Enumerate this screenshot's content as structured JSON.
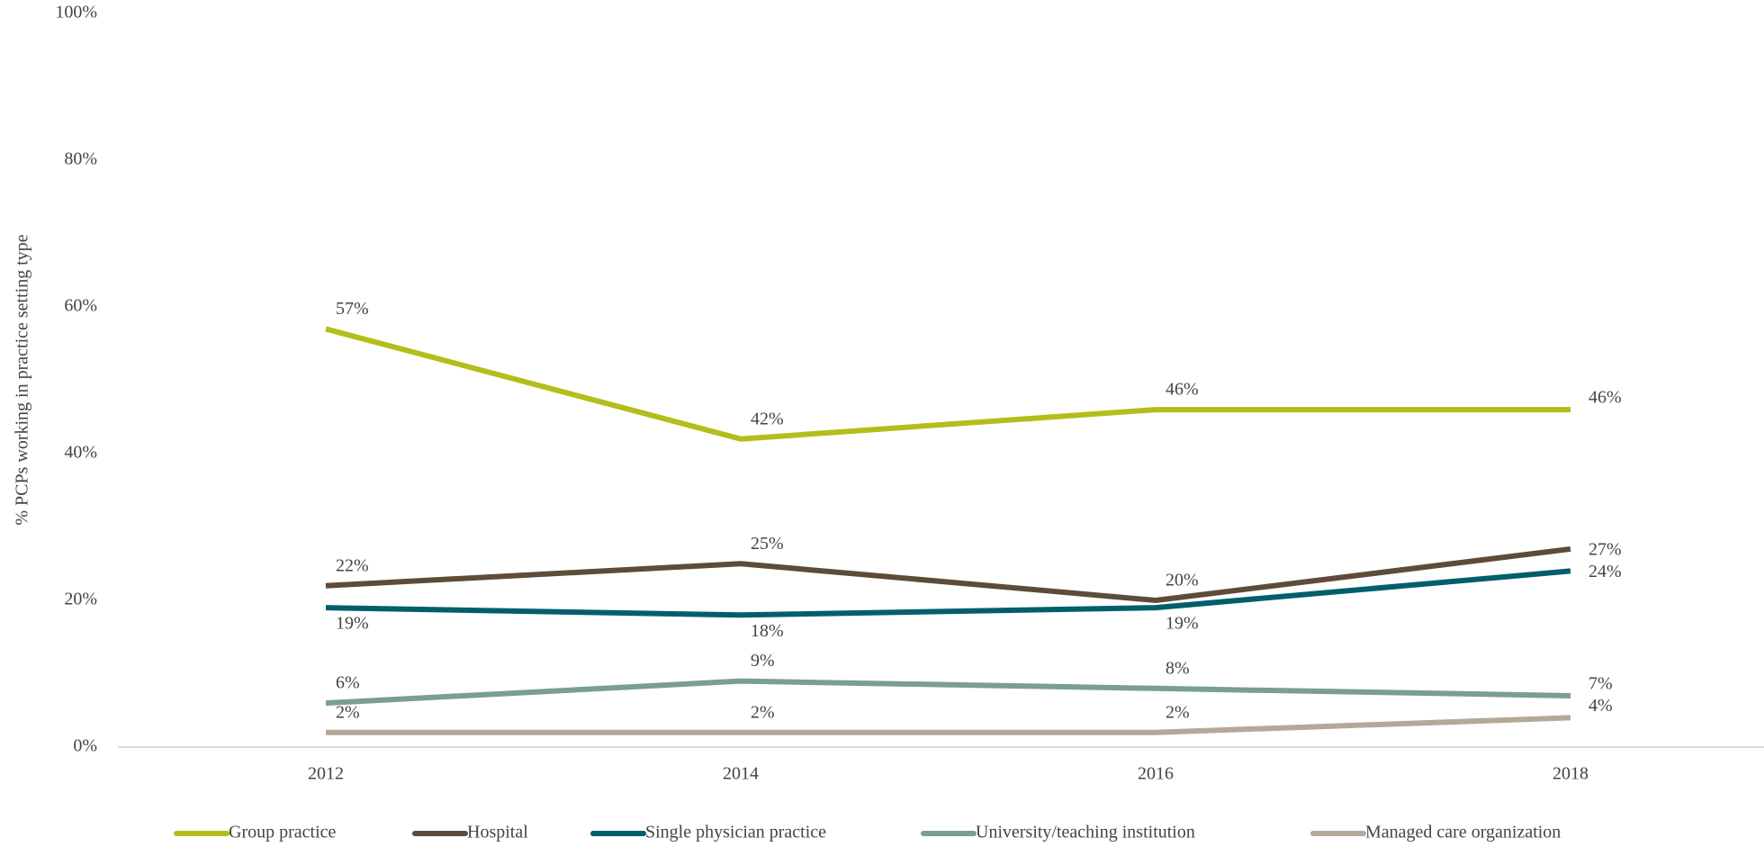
{
  "chart_data": {
    "type": "line",
    "y_label": "% PCPs working in practice setting type",
    "categories": [
      "2012",
      "2014",
      "2016",
      "2018"
    ],
    "ylim": [
      0,
      100
    ],
    "yticks": [
      {
        "value": 0,
        "label": "0%"
      },
      {
        "value": 20,
        "label": "20%"
      },
      {
        "value": 40,
        "label": "40%"
      },
      {
        "value": 60,
        "label": "60%"
      },
      {
        "value": 80,
        "label": "80%"
      },
      {
        "value": 100,
        "label": "100%"
      }
    ],
    "grid": false,
    "legend": "bottom",
    "series": [
      {
        "name": "Group practice",
        "color": "#b5bd1a",
        "values": [
          57,
          42,
          46,
          46
        ],
        "value_labels": [
          "57%",
          "42%",
          "46%",
          "46%"
        ]
      },
      {
        "name": "Hospital",
        "color": "#5e4b3a",
        "values": [
          22,
          25,
          20,
          27
        ],
        "value_labels": [
          "22%",
          "25%",
          "20%",
          "27%"
        ]
      },
      {
        "name": "Single physician practice",
        "color": "#005f6b",
        "values": [
          19,
          18,
          19,
          24
        ],
        "value_labels": [
          "19%",
          "18%",
          "19%",
          "24%"
        ]
      },
      {
        "name": "University/teaching institution",
        "color": "#7a9f90",
        "values": [
          6,
          9,
          8,
          7
        ],
        "value_labels": [
          "6%",
          "9%",
          "8%",
          "7%"
        ]
      },
      {
        "name": "Managed care organization",
        "color": "#b5a898",
        "values": [
          2,
          2,
          2,
          4
        ],
        "value_labels": [
          "2%",
          "2%",
          "2%",
          "4%"
        ]
      }
    ]
  }
}
